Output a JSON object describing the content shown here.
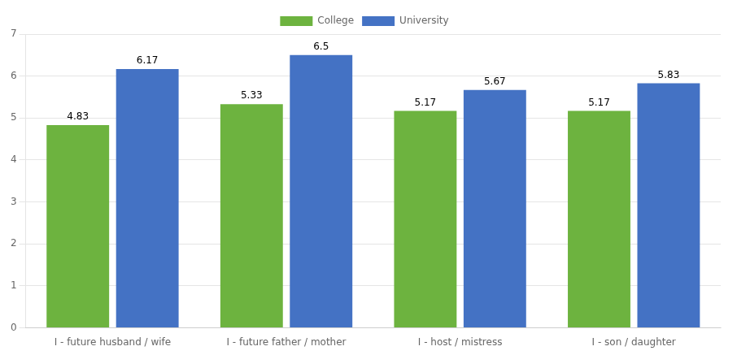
{
  "chart_data": {
    "type": "bar",
    "categories": [
      "I - future husband / wife",
      "I - future father / mother",
      "I - host / mistress",
      "I - son / daughter"
    ],
    "series": [
      {
        "name": "College",
        "color": "#6db33f",
        "values": [
          4.83,
          5.33,
          5.17,
          5.17
        ]
      },
      {
        "name": "University",
        "color": "#4472c4",
        "values": [
          6.17,
          6.5,
          5.67,
          5.83
        ]
      }
    ],
    "ylim": [
      0,
      7
    ],
    "yticks": [
      0,
      1,
      2,
      3,
      4,
      5,
      6,
      7
    ],
    "grid": true,
    "legend": "top",
    "data_labels": true
  }
}
